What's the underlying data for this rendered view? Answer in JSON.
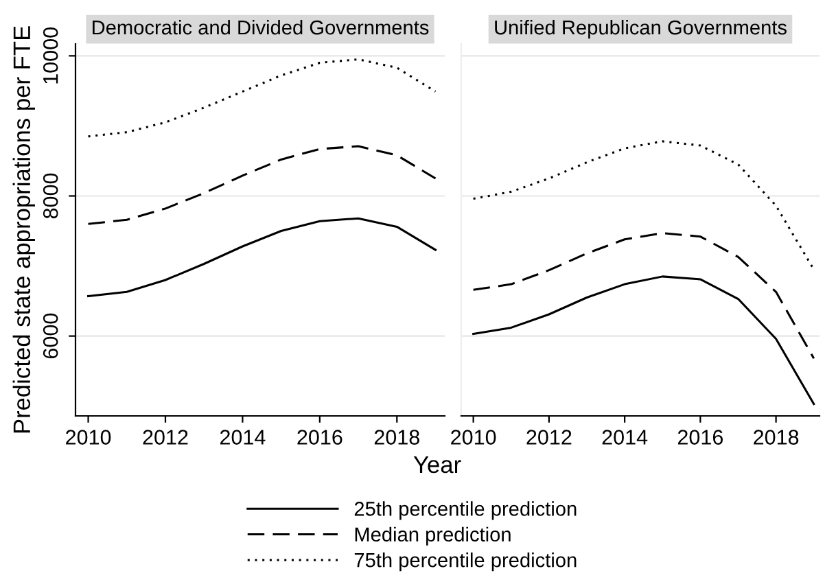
{
  "chart_data": [
    {
      "type": "line",
      "title": "Democratic and Divided Governments",
      "ylabel": "Predicted state appropriations per FTE",
      "xlabel": "Year",
      "x": [
        2010,
        2011,
        2012,
        2013,
        2014,
        2015,
        2016,
        2017,
        2018,
        2019
      ],
      "xlim": [
        2009.67,
        2019.24
      ],
      "xticks": [
        2010,
        2012,
        2014,
        2016,
        2018
      ],
      "ylim": [
        4860,
        10170
      ],
      "yticks": [
        6000,
        8000,
        10000
      ],
      "grid": "y",
      "legend": "bottom",
      "series": [
        {
          "name": "25th percentile prediction",
          "color": "#000000",
          "line_style": "solid",
          "values": [
            6570,
            6630,
            6800,
            7030,
            7280,
            7500,
            7640,
            7680,
            7560,
            7230
          ]
        },
        {
          "name": "Median prediction",
          "color": "#000000",
          "line_style": "dashed",
          "values": [
            7600,
            7660,
            7820,
            8040,
            8290,
            8520,
            8670,
            8710,
            8580,
            8250
          ]
        },
        {
          "name": "75th percentile prediction",
          "color": "#000000",
          "line_style": "dotted",
          "values": [
            8850,
            8910,
            9050,
            9260,
            9490,
            9720,
            9900,
            9950,
            9830,
            9490
          ]
        }
      ]
    },
    {
      "type": "line",
      "title": "Unified Republican Governments",
      "x": [
        2010,
        2011,
        2012,
        2013,
        2014,
        2015,
        2016,
        2017,
        2018,
        2019
      ],
      "xlim": [
        2009.68,
        2019.15
      ],
      "xticks": [
        2010,
        2012,
        2014,
        2016,
        2018
      ],
      "ylim": [
        4860,
        10170
      ],
      "yticks": [
        6000,
        8000,
        10000
      ],
      "grid": "y",
      "tick_labels": "x",
      "series": [
        {
          "color": "#000000",
          "line_style": "solid",
          "values": [
            6030,
            6120,
            6310,
            6550,
            6740,
            6850,
            6810,
            6530,
            5960,
            5030
          ]
        },
        {
          "color": "#000000",
          "line_style": "dashed",
          "values": [
            6660,
            6740,
            6940,
            7180,
            7380,
            7470,
            7420,
            7130,
            6630,
            5680
          ]
        },
        {
          "color": "#000000",
          "line_style": "dotted",
          "values": [
            7960,
            8060,
            8250,
            8480,
            8680,
            8780,
            8720,
            8450,
            7860,
            6950
          ]
        }
      ]
    }
  ]
}
